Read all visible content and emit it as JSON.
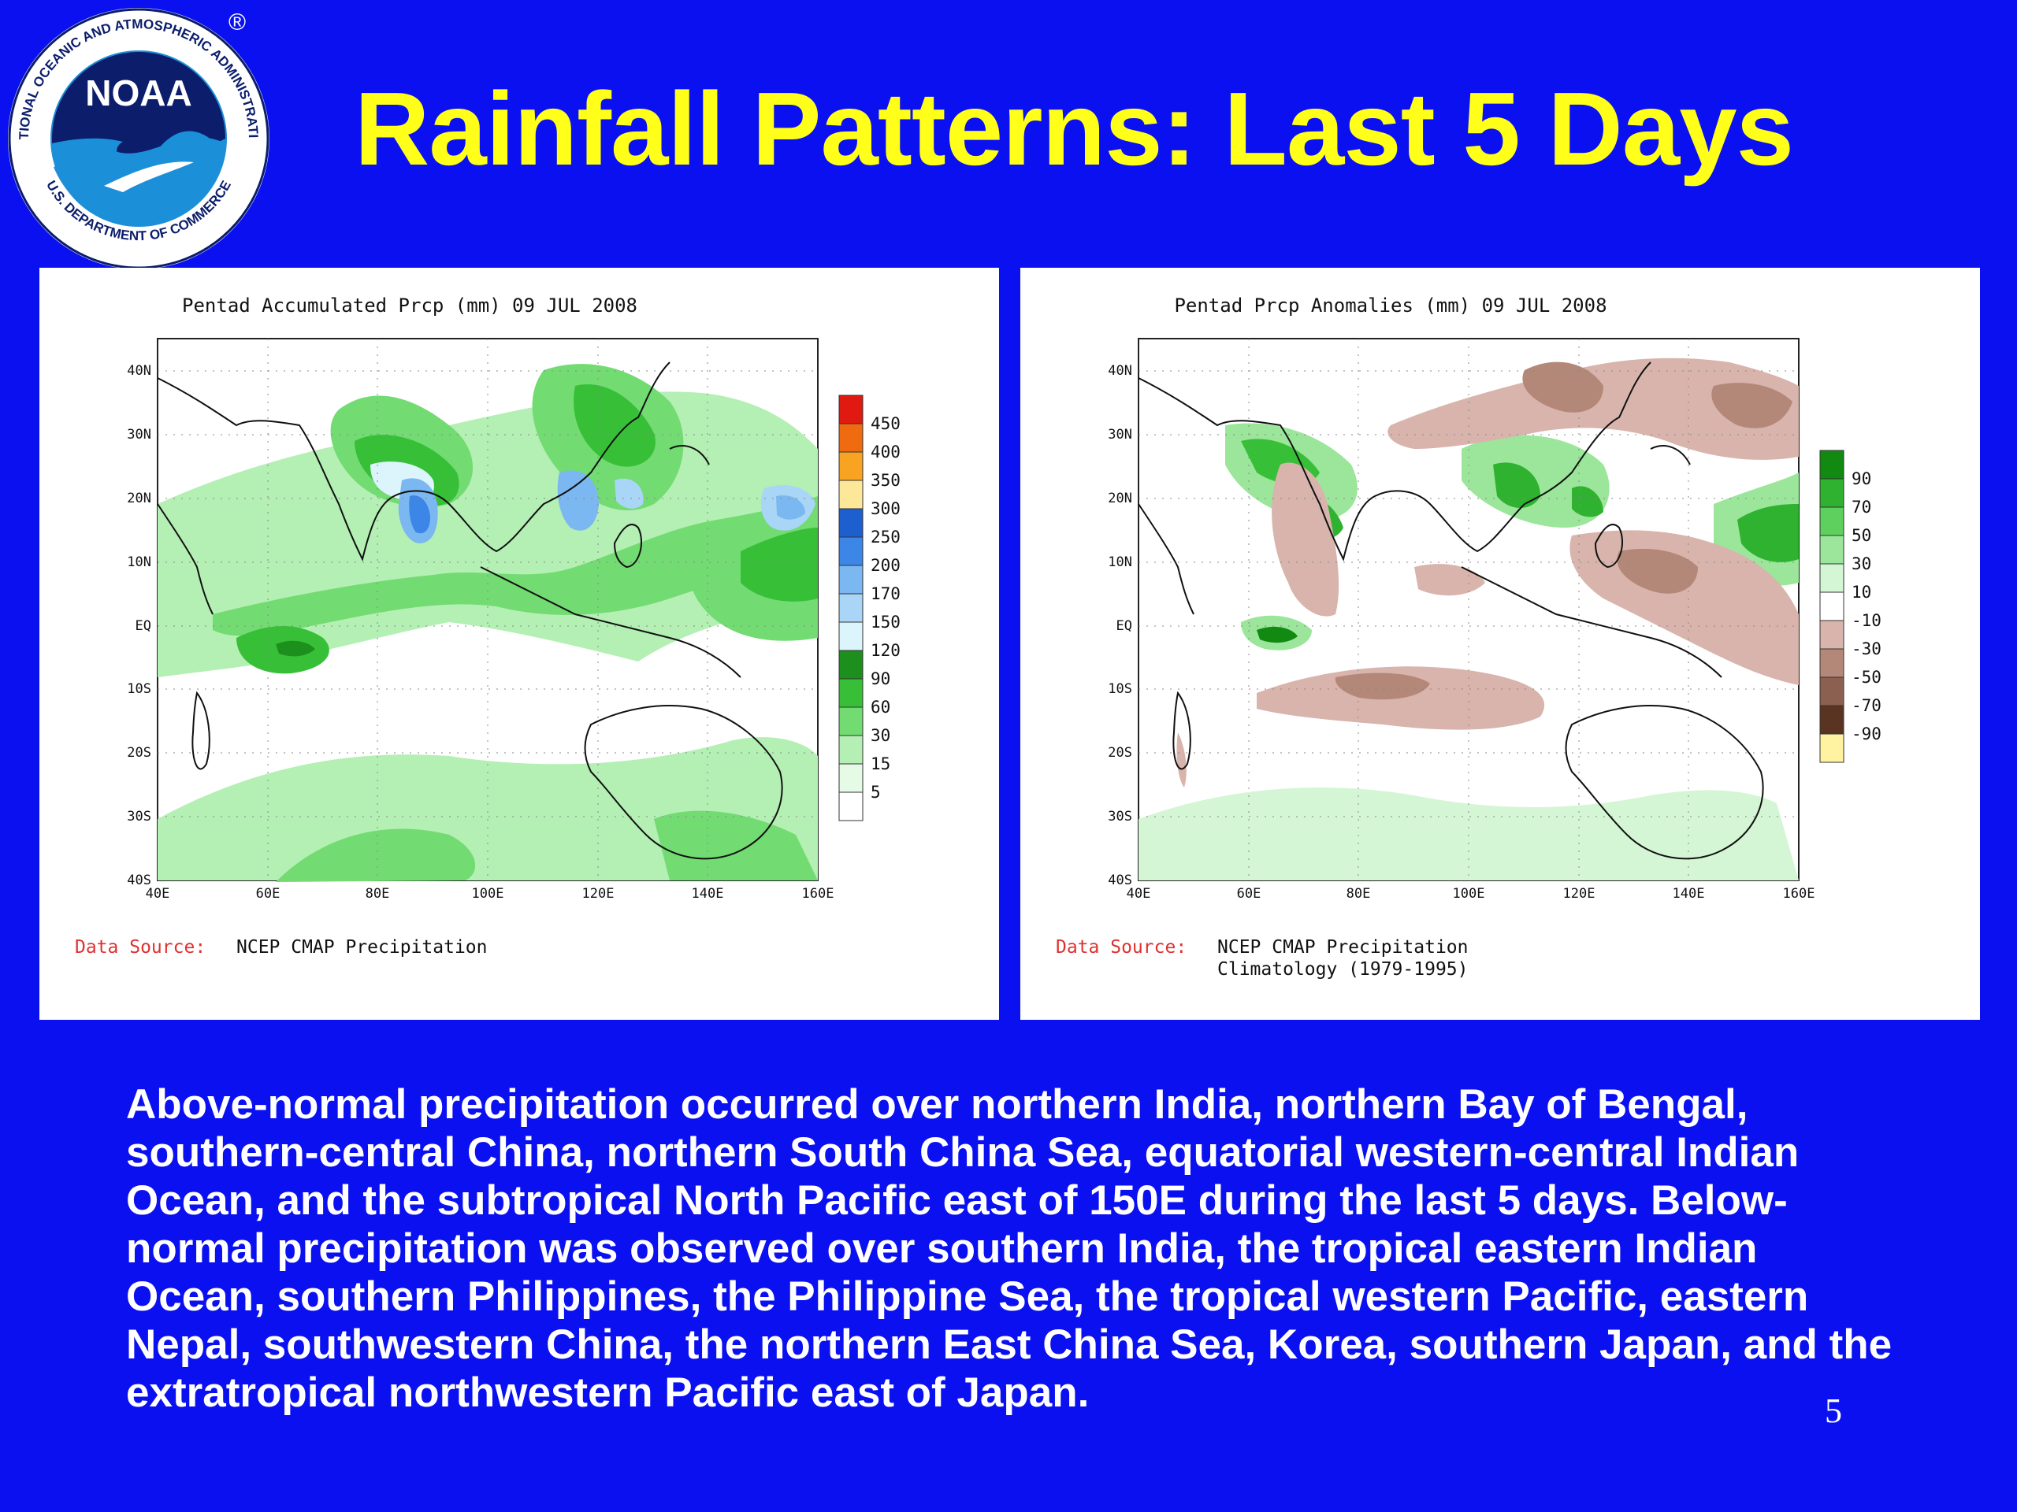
{
  "header": {
    "title": "Rainfall Patterns: Last 5 Days",
    "logo": {
      "text": "NOAA",
      "ring_text": "NATIONAL OCEANIC AND ATMOSPHERIC ADMINISTRATION",
      "ring_text_bottom": "U.S. DEPARTMENT OF COMMERCE",
      "registered": "®"
    }
  },
  "maps": [
    {
      "title": "Pentad Accumulated Prcp (mm) 09 JUL 2008",
      "source_label": "Data Source:",
      "source_lines": [
        "NCEP CMAP Precipitation"
      ],
      "legend": {
        "labels": [
          "450",
          "400",
          "350",
          "300",
          "250",
          "200",
          "170",
          "150",
          "120",
          "90",
          "60",
          "30",
          "15",
          "5"
        ],
        "colors": [
          "#e01a10",
          "#f06a10",
          "#f9a322",
          "#fde89a",
          "#1e5fd0",
          "#3b86e6",
          "#7bb7f0",
          "#a9d6f6",
          "#dcf4fc",
          "#1d8f1d",
          "#37c037",
          "#72db72",
          "#b4efb4",
          "#e6fbe6",
          "#ffffff"
        ]
      }
    },
    {
      "title": "Pentad Prcp Anomalies (mm) 09 JUL 2008",
      "source_label": "Data Source:",
      "source_lines": [
        "NCEP CMAP Precipitation",
        "Climatology (1979-1995)"
      ],
      "legend": {
        "labels": [
          "90",
          "70",
          "50",
          "30",
          "10",
          "-10",
          "-30",
          "-50",
          "-70",
          "-90"
        ],
        "colors": [
          "#128a12",
          "#2fb22f",
          "#5ed05e",
          "#9be69b",
          "#d4f6d4",
          "#ffffff",
          "#d8b4ac",
          "#b48878",
          "#8b6050",
          "#5a3422",
          "#fff2a0"
        ]
      }
    }
  ],
  "axes": {
    "lon_ticks": [
      "40E",
      "60E",
      "80E",
      "100E",
      "120E",
      "140E",
      "160E"
    ],
    "lat_ticks": [
      "40N",
      "30N",
      "20N",
      "10N",
      "EQ",
      "10S",
      "20S",
      "30S",
      "40S"
    ]
  },
  "caption": "Above-normal precipitation occurred over northern India, northern Bay of Bengal, southern-central China, northern South China Sea, equatorial western-central Indian Ocean, and the subtropical North Pacific east of 150E during the last 5 days. Below-normal precipitation was observed over southern India, the tropical eastern Indian Ocean, southern Philippines, the Philippine Sea, the tropical western Pacific, eastern Nepal, southwestern China, the northern East China Sea, Korea, southern Japan, and the extratropical northwestern Pacific east of Japan.",
  "page_number": "5"
}
